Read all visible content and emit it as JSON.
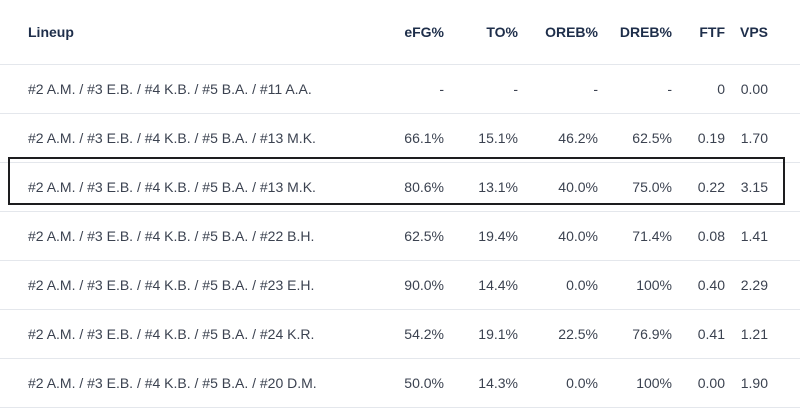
{
  "table": {
    "headers": {
      "lineup": "Lineup",
      "efg": "eFG%",
      "to": "TO%",
      "oreb": "OREB%",
      "dreb": "DREB%",
      "ftf": "FTF",
      "vps": "VPS"
    },
    "rows": [
      {
        "lineup": "#2 A.M. / #3 E.B. / #4 K.B. / #5 B.A. / #11 A.A.",
        "efg": "-",
        "to": "-",
        "oreb": "-",
        "dreb": "-",
        "ftf": "0",
        "vps": "0.00"
      },
      {
        "lineup": "#2 A.M. / #3 E.B. / #4 K.B. / #5 B.A. / #13 M.K.",
        "efg": "66.1%",
        "to": "15.1%",
        "oreb": "46.2%",
        "dreb": "62.5%",
        "ftf": "0.19",
        "vps": "1.70"
      },
      {
        "lineup": "#2 A.M. / #3 E.B. / #4 K.B. / #5 B.A. / #13 M.K.",
        "efg": "80.6%",
        "to": "13.1%",
        "oreb": "40.0%",
        "dreb": "75.0%",
        "ftf": "0.22",
        "vps": "3.15"
      },
      {
        "lineup": "#2 A.M. / #3 E.B. / #4 K.B. / #5 B.A. / #22 B.H.",
        "efg": "62.5%",
        "to": "19.4%",
        "oreb": "40.0%",
        "dreb": "71.4%",
        "ftf": "0.08",
        "vps": "1.41"
      },
      {
        "lineup": "#2 A.M. / #3 E.B. / #4 K.B. / #5 B.A. / #23 E.H.",
        "efg": "90.0%",
        "to": "14.4%",
        "oreb": "0.0%",
        "dreb": "100%",
        "ftf": "0.40",
        "vps": "2.29"
      },
      {
        "lineup": "#2 A.M. / #3 E.B. / #4 K.B. / #5 B.A. / #24 K.R.",
        "efg": "54.2%",
        "to": "19.1%",
        "oreb": "22.5%",
        "dreb": "76.9%",
        "ftf": "0.41",
        "vps": "1.21"
      },
      {
        "lineup": "#2 A.M. / #3 E.B. / #4 K.B. / #5 B.A. / #20 D.M.",
        "efg": "50.0%",
        "to": "14.3%",
        "oreb": "0.0%",
        "dreb": "100%",
        "ftf": "0.00",
        "vps": "1.90"
      }
    ]
  }
}
